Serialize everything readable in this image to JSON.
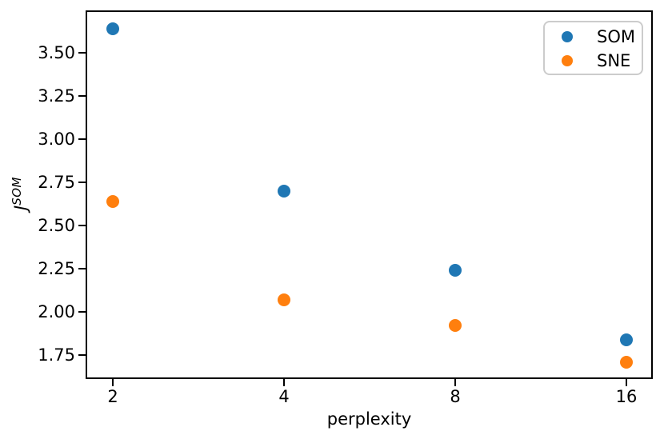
{
  "figure": {
    "background": "#ffffff",
    "ylabel_base": "J",
    "ylabel_sup": "SOM"
  },
  "chart_data": {
    "type": "scatter",
    "title": "",
    "xlabel": "perplexity",
    "ylabel": "J^SOM",
    "xscale": "log2",
    "x": [
      2,
      4,
      8,
      16
    ],
    "xtick_labels": [
      "2",
      "4",
      "8",
      "16"
    ],
    "ytick_labels": [
      "3.50",
      "3.25",
      "3.00",
      "2.75",
      "2.50",
      "2.25",
      "2.00",
      "1.75"
    ],
    "xlim": [
      1.8,
      17.75
    ],
    "ylim": [
      1.62,
      3.74
    ],
    "grid": false,
    "axis_color": "#000000",
    "legend": {
      "position": "upper right",
      "entries": [
        "SOM",
        "SNE"
      ]
    },
    "series": [
      {
        "name": "SOM",
        "color": "#1f77b4",
        "values": [
          3.64,
          2.7,
          2.24,
          1.84
        ]
      },
      {
        "name": "SNE",
        "color": "#ff7f0e",
        "values": [
          2.64,
          2.07,
          1.92,
          1.71
        ]
      }
    ]
  }
}
